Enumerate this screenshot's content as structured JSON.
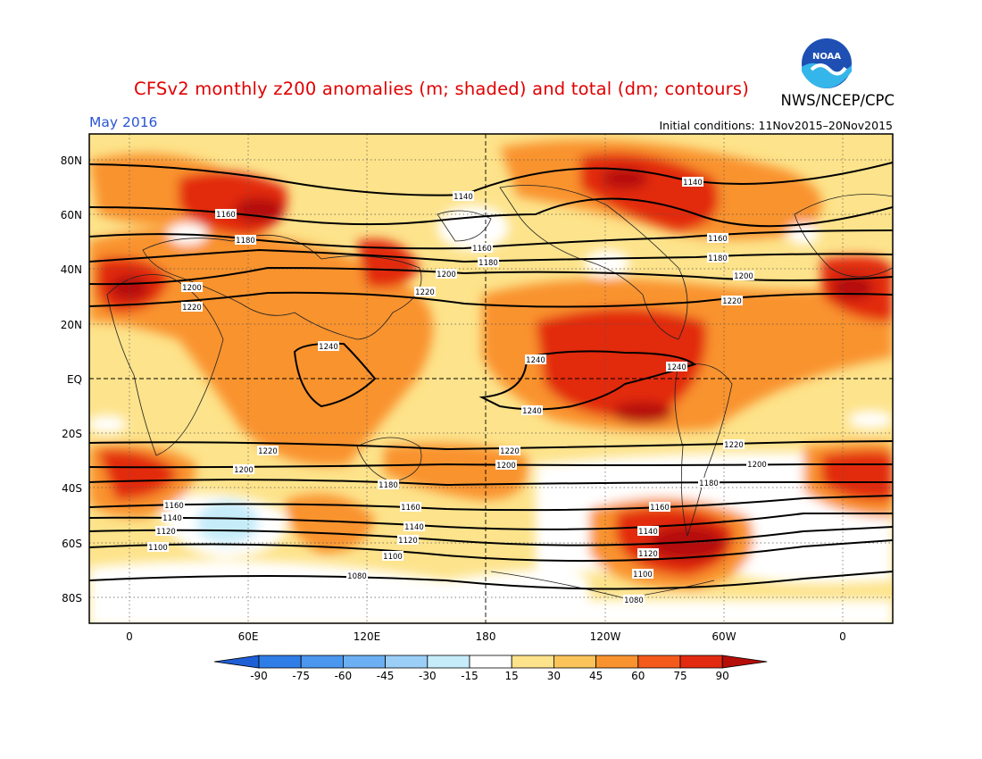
{
  "header": {
    "title": "CFSv2 monthly z200 anomalies (m; shaded) and total (dm; contours)",
    "agency": "NWS/NCEP/CPC",
    "month": "May 2016",
    "initial_conditions": "Initial conditions: 11Nov2015–20Nov2015",
    "logo_text": "NOAA"
  },
  "axes": {
    "lat_labels": [
      "80N",
      "60N",
      "40N",
      "20N",
      "EQ",
      "20S",
      "40S",
      "60S",
      "80S"
    ],
    "lon_labels": [
      "0",
      "60E",
      "120E",
      "180",
      "120W",
      "60W",
      "0"
    ]
  },
  "contour_labels": [
    {
      "text": "1140",
      "pos": "top-pacific"
    },
    {
      "text": "1140",
      "pos": "top-america"
    },
    {
      "text": "1160",
      "pos": "asia"
    },
    {
      "text": "1160",
      "pos": "pacific"
    },
    {
      "text": "1160",
      "pos": "america"
    },
    {
      "text": "1180",
      "pos": "asia"
    },
    {
      "text": "1180",
      "pos": "pacific"
    },
    {
      "text": "1180",
      "pos": "america"
    },
    {
      "text": "1200",
      "pos": "europe"
    },
    {
      "text": "1200",
      "pos": "pacific"
    },
    {
      "text": "1200",
      "pos": "atlantic"
    },
    {
      "text": "1220",
      "pos": "europe"
    },
    {
      "text": "1220",
      "pos": "asia"
    },
    {
      "text": "1220",
      "pos": "atlantic"
    },
    {
      "text": "1240",
      "pos": "indonesia"
    },
    {
      "text": "1240",
      "pos": "pacific-n"
    },
    {
      "text": "1240",
      "pos": "pacific-s"
    },
    {
      "text": "1240",
      "pos": "south-america"
    },
    {
      "text": "1220",
      "pos": "s-indian"
    },
    {
      "text": "1220",
      "pos": "s-pacific"
    },
    {
      "text": "1220",
      "pos": "s-atlantic"
    },
    {
      "text": "1200",
      "pos": "s-indian"
    },
    {
      "text": "1200",
      "pos": "s-pacific"
    },
    {
      "text": "1200",
      "pos": "s-atlantic"
    },
    {
      "text": "1180",
      "pos": "s-aus"
    },
    {
      "text": "1180",
      "pos": "s-america"
    },
    {
      "text": "1160",
      "pos": "s-africa"
    },
    {
      "text": "1160",
      "pos": "s-pacific"
    },
    {
      "text": "1160",
      "pos": "s-america"
    },
    {
      "text": "1140",
      "pos": "s-africa"
    },
    {
      "text": "1140",
      "pos": "s-pacific"
    },
    {
      "text": "1140",
      "pos": "s-america"
    },
    {
      "text": "1120",
      "pos": "s-africa"
    },
    {
      "text": "1120",
      "pos": "s-pacific"
    },
    {
      "text": "1120",
      "pos": "s-america"
    },
    {
      "text": "1100",
      "pos": "s-africa"
    },
    {
      "text": "1100",
      "pos": "s-pacific"
    },
    {
      "text": "1100",
      "pos": "s-america"
    },
    {
      "text": "1080",
      "pos": "s-aus"
    },
    {
      "text": "1080",
      "pos": "s-america"
    }
  ],
  "colorbar": {
    "ticks": [
      "-90",
      "-75",
      "-60",
      "-45",
      "-30",
      "-15",
      "15",
      "30",
      "45",
      "60",
      "75",
      "90"
    ],
    "colors": [
      "#1e5fd6",
      "#2f7de6",
      "#4b96ee",
      "#6cb0f3",
      "#9bcff7",
      "#c6ecfa",
      "#ffffff",
      "#fde38b",
      "#fbc45a",
      "#f9932f",
      "#f45a1b",
      "#e22a10",
      "#b50d08"
    ]
  },
  "colors": {
    "title": "#e00000",
    "month": "#2a55d6",
    "anomaly_low": "#fde38b",
    "anomaly_mid": "#f9932f",
    "anomaly_high": "#e22a10",
    "anomaly_max": "#b50d08",
    "negative": "#c6ecfa"
  }
}
